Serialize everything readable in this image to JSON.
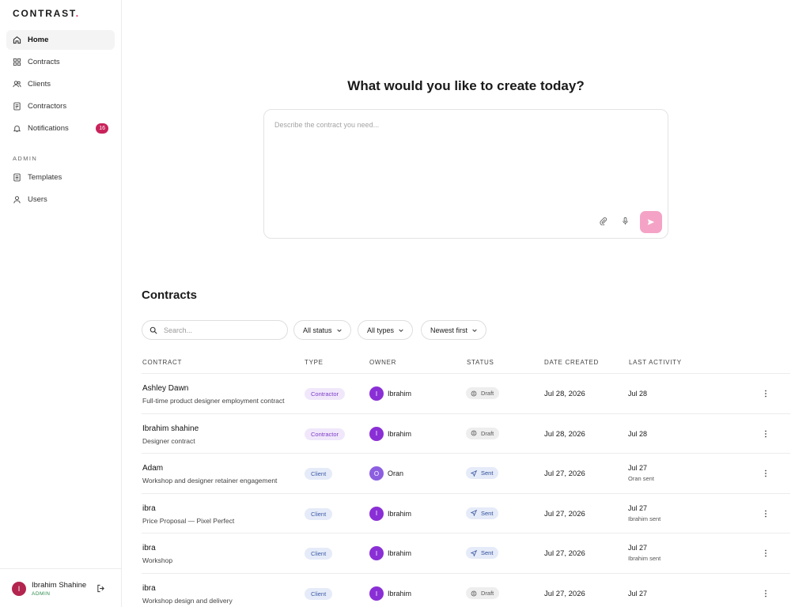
{
  "sidebar": {
    "logo": "CONTRAST",
    "logo_mark": ".",
    "nav": [
      {
        "label": "Home"
      },
      {
        "label": "Contracts"
      },
      {
        "label": "Clients"
      },
      {
        "label": "Contractors"
      },
      {
        "label": "Notifications",
        "badge": 16
      }
    ],
    "section_label": "ADMIN",
    "admin_nav": [
      {
        "label": "Templates"
      },
      {
        "label": "Users"
      }
    ],
    "user": {
      "initial": "I",
      "name": "Ibrahim Shahine",
      "role": "ADMIN"
    }
  },
  "prompt": {
    "title": "What would you like to create today?",
    "placeholder": "Describe the contract you need..."
  },
  "contracts": {
    "title": "Contracts",
    "search_placeholder": "Search...",
    "filters": [
      "All status",
      "All types",
      "Newest first"
    ],
    "columns": [
      "CONTRACT",
      "TYPE",
      "OWNER",
      "STATUS",
      "DATE CREATED",
      "LAST ACTIVITY"
    ],
    "rows": [
      {
        "name": "Ashley Dawn",
        "description": "Full-time product designer employment contract",
        "type": "Contractor",
        "owner_initial": "I",
        "owner": "Ibrahim",
        "status": "Draft",
        "date_created": "Jul 28, 2026",
        "last_activity": "Jul 28"
      },
      {
        "name": "Ibrahim shahine",
        "description": "Designer contract",
        "type": "Contractor",
        "owner_initial": "I",
        "owner": "Ibrahim",
        "status": "Draft",
        "date_created": "Jul 28, 2026",
        "last_activity": "Jul 28"
      },
      {
        "name": "Adam",
        "description": "Workshop and designer retainer engagement",
        "type": "Client",
        "owner_initial": "O",
        "owner": "Oran",
        "status": "Sent",
        "date_created": "Jul 27, 2026",
        "last_activity": "Jul 27",
        "activity_note": "Oran sent"
      },
      {
        "name": "ibra",
        "description": "Price Proposal — Pixel Perfect",
        "type": "Client",
        "owner_initial": "I",
        "owner": "Ibrahim",
        "status": "Sent",
        "date_created": "Jul 27, 2026",
        "last_activity": "Jul 27",
        "activity_note": "Ibrahim sent"
      },
      {
        "name": "ibra",
        "description": "Workshop",
        "type": "Client",
        "owner_initial": "I",
        "owner": "Ibrahim",
        "status": "Sent",
        "date_created": "Jul 27, 2026",
        "last_activity": "Jul 27",
        "activity_note": "Ibrahim sent"
      },
      {
        "name": "ibra",
        "description": "Workshop design and delivery",
        "type": "Client",
        "owner_initial": "I",
        "owner": "Ibrahim",
        "status": "Draft",
        "date_created": "Jul 27, 2026",
        "last_activity": "Jul 27"
      }
    ]
  }
}
